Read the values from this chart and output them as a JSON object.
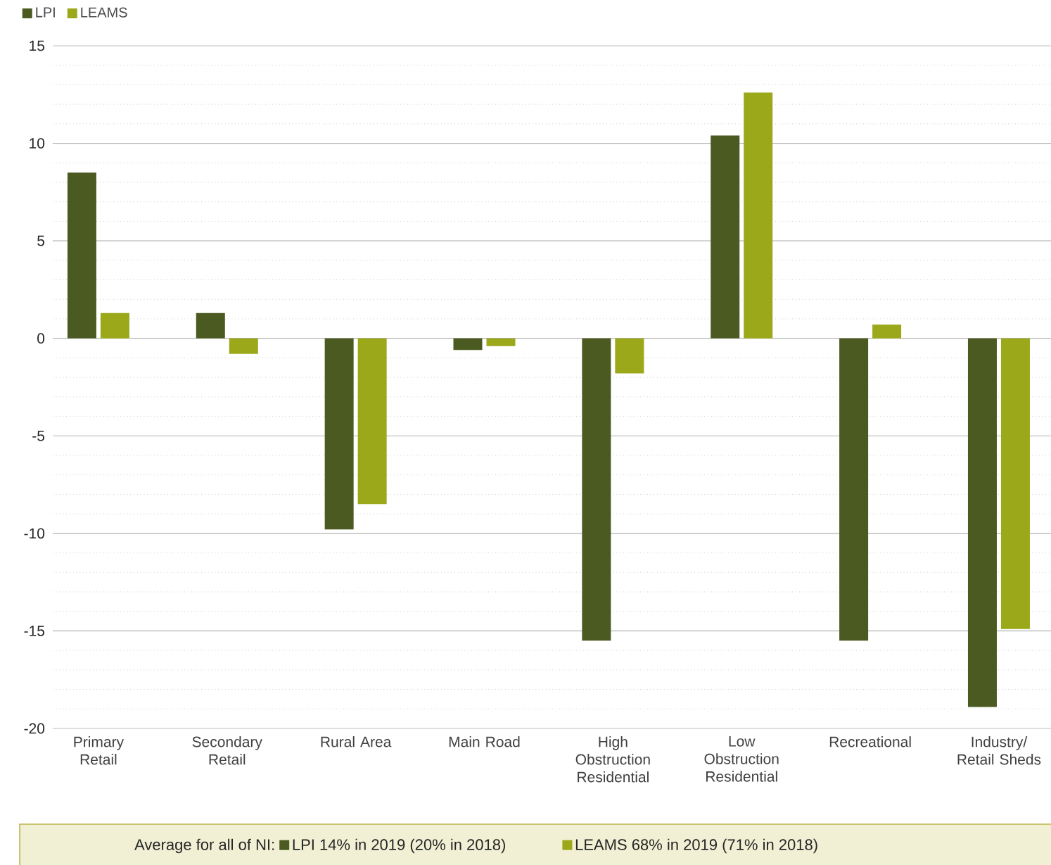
{
  "chart_data": {
    "type": "bar",
    "categories": [
      "Primary Retail",
      "Secondary Retail",
      "Rural Area",
      "Main Road",
      "High Obstruction Residential",
      "Low Obstruction Residential",
      "Recreational",
      "Industry/ Retail Sheds"
    ],
    "series": [
      {
        "name": "LPI",
        "color": "#4b5a21",
        "values": [
          8.5,
          1.3,
          -9.8,
          -0.6,
          -15.5,
          10.4,
          -15.5,
          -18.9
        ]
      },
      {
        "name": "LEAMS",
        "color": "#9aa819",
        "values": [
          1.3,
          -0.8,
          -8.5,
          -0.4,
          -1.8,
          12.6,
          0.7,
          -14.9
        ]
      }
    ],
    "ylim": [
      -20,
      15
    ],
    "yticks": [
      -20,
      -15,
      -10,
      -5,
      0,
      5,
      10,
      15
    ],
    "grid": "y",
    "legend": "top left",
    "annotations": [
      "Average for all of NI:",
      "LPI 14% in 2019 (20% in 2018)",
      "LEAMS 68% in 2019 (71% in 2018)"
    ]
  }
}
